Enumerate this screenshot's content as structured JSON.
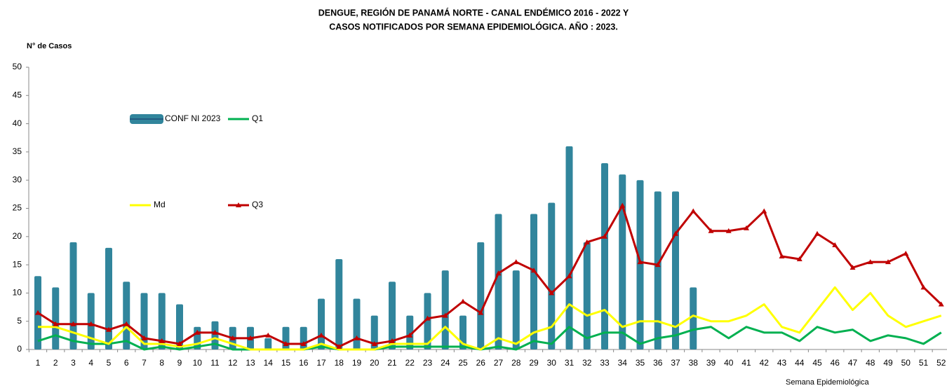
{
  "chart_data": {
    "type": "combo",
    "title": [
      "DENGUE, REGIÓN DE PANAMÁ NORTE - CANAL ENDÉMICO  2016 - 2022 Y",
      "CASOS NOTIFICADOS POR SEMANA EPIDEMIOLÓGICA. AÑO : 2023."
    ],
    "y_label": "N° de Casos",
    "x_label": "Semana Epidemiológica",
    "x": [
      1,
      2,
      3,
      4,
      5,
      6,
      7,
      8,
      9,
      10,
      11,
      12,
      13,
      14,
      15,
      16,
      17,
      18,
      19,
      20,
      21,
      22,
      23,
      24,
      25,
      26,
      27,
      28,
      29,
      30,
      31,
      32,
      33,
      34,
      35,
      36,
      37,
      38,
      39,
      40,
      41,
      42,
      43,
      44,
      45,
      46,
      47,
      48,
      49,
      50,
      51,
      52
    ],
    "xticks": [
      1,
      2,
      3,
      4,
      5,
      6,
      7,
      8,
      9,
      10,
      11,
      12,
      13,
      14,
      15,
      16,
      17,
      18,
      19,
      20,
      21,
      22,
      23,
      24,
      25,
      26,
      27,
      28,
      29,
      30,
      31,
      32,
      33,
      34,
      35,
      36,
      37,
      38,
      39,
      40,
      41,
      42,
      43,
      44,
      45,
      46,
      47,
      48,
      49,
      50,
      51,
      52
    ],
    "ylim": [
      0,
      50
    ],
    "yticks": [
      0,
      5,
      10,
      15,
      20,
      25,
      30,
      35,
      40,
      45,
      50
    ],
    "series": [
      {
        "name": "CONF NI 2023",
        "type": "bar",
        "color": "#31859c",
        "values": [
          13,
          11,
          19,
          10,
          18,
          12,
          10,
          10,
          8,
          4,
          5,
          4,
          4,
          2,
          4,
          4,
          9,
          16,
          9,
          6,
          12,
          6,
          10,
          14,
          6,
          19,
          24,
          14,
          24,
          26,
          36,
          19,
          33,
          31,
          30,
          28,
          28,
          11,
          null,
          null,
          null,
          null,
          null,
          null,
          null,
          null,
          null,
          null,
          null,
          null,
          null,
          null
        ]
      },
      {
        "name": "Q1",
        "type": "line",
        "color": "#00b050",
        "values": [
          1.5,
          2.5,
          1.5,
          1,
          1,
          1.5,
          0,
          0.5,
          0,
          0.5,
          1,
          0,
          0,
          0,
          0,
          0,
          0.5,
          0,
          0,
          0,
          0.5,
          0.5,
          0.5,
          0.5,
          0.5,
          0,
          0.5,
          0,
          1.5,
          1,
          4,
          2,
          3,
          3,
          1,
          2,
          2.5,
          3.5,
          4,
          2,
          4,
          3,
          3,
          1.5,
          4,
          3,
          3.5,
          1.5,
          2.5,
          2,
          1,
          3
        ]
      },
      {
        "name": "Md",
        "type": "line",
        "color": "#ffff00",
        "values": [
          4,
          4,
          3,
          2,
          1,
          4,
          1,
          1,
          0.5,
          1,
          2,
          1,
          0,
          0,
          0,
          0,
          1,
          0,
          0,
          0,
          1,
          1,
          1,
          4,
          1,
          0,
          2,
          1,
          3,
          4,
          8,
          6,
          7,
          4,
          5,
          5,
          4,
          6,
          5,
          5,
          6,
          8,
          4,
          3,
          7,
          11,
          7,
          10,
          6,
          4,
          5,
          6
        ]
      },
      {
        "name": "Q3",
        "type": "line",
        "color": "#c00000",
        "marker": "triangle",
        "values": [
          6.5,
          4.5,
          4.5,
          4.5,
          3.5,
          4.5,
          2,
          1.5,
          1,
          3,
          3,
          2,
          2,
          2.5,
          1,
          1,
          2.5,
          0.5,
          2,
          1,
          1.5,
          2.5,
          5.5,
          6,
          8.5,
          6.5,
          13.5,
          15.5,
          14,
          10,
          13,
          19,
          20,
          25.5,
          15.5,
          15,
          20.5,
          24.5,
          21,
          21,
          21.5,
          24.5,
          16.5,
          16,
          20.5,
          18.5,
          14.5,
          15.5,
          15.5,
          17,
          11,
          8
        ]
      }
    ]
  }
}
